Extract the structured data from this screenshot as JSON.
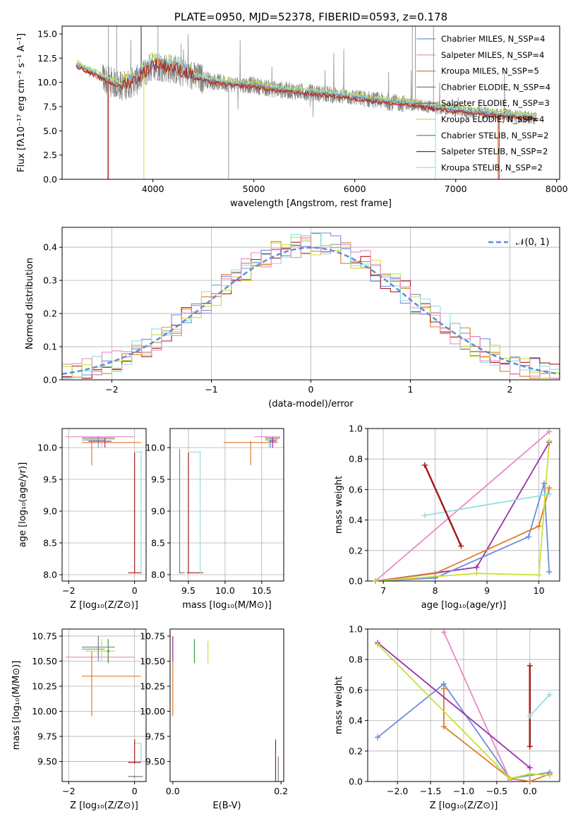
{
  "colors": {
    "chabrier_miles": "#6a8fdc",
    "salpeter_miles": "#e78ac3",
    "kroupa_miles": "#e07b2a",
    "chabrier_elodie": "#7f7f7f",
    "salpeter_elodie": "#9b30b0",
    "kroupa_elodie": "#c8e036",
    "chabrier_stelib": "#3f8f3f",
    "salpeter_stelib": "#a51c1c",
    "kroupa_stelib": "#8fe0e0",
    "spectrum": "#808080",
    "normal": "#5b8fd6"
  },
  "chart_data": [
    {
      "id": "spectrum",
      "type": "line",
      "title": "PLATE=0950, MJD=52378, FIBERID=0593, z=0.178",
      "xlabel": "wavelength [Angstrom, rest frame]",
      "ylabel": "Flux [fλ10⁻¹⁷ erg cm⁻² s⁻¹ A⁻¹]",
      "xlim": [
        3100,
        8030
      ],
      "ylim": [
        0,
        15.8
      ],
      "xticks": [
        4000,
        5000,
        6000,
        7000,
        8000
      ],
      "yticks": [
        0.0,
        2.5,
        5.0,
        7.5,
        10.0,
        12.5,
        15.0
      ],
      "xtick_labels": [
        "4000",
        "5000",
        "6000",
        "7000",
        "8000"
      ],
      "ytick_labels": [
        "0.0",
        "2.5",
        "5.0",
        "7.5",
        "10.0",
        "12.5",
        "15.0"
      ],
      "model_continuum": {
        "x": [
          3240,
          3400,
          3550,
          3700,
          3850,
          4000,
          4200,
          4400,
          4600,
          4800,
          5000,
          5200,
          5500,
          5800,
          6100,
          6400,
          6600,
          6800,
          7000,
          7200,
          7400,
          7600,
          7800
        ],
        "y": [
          11.8,
          11.0,
          10.2,
          9.6,
          10.3,
          11.8,
          11.4,
          10.6,
          10.1,
          9.8,
          9.7,
          9.3,
          9.0,
          8.7,
          8.3,
          7.9,
          7.7,
          7.4,
          7.1,
          6.9,
          6.7,
          6.5,
          6.3
        ]
      },
      "legend": [
        "Chabrier MILES, N_SSP=4",
        "Salpeter MILES, N_SSP=4",
        "Kroupa MILES, N_SSP=5",
        "Chabrier ELODIE, N_SSP=4",
        "Salpeter ELODIE, N_SSP=3",
        "Kroupa ELODIE, N_SSP=4",
        "Chabrier STELIB, N_SSP=2",
        "Salpeter STELIB, N_SSP=2",
        "Kroupa STELIB, N_SSP=2"
      ],
      "legend_placement": "upper-right",
      "grid": false
    },
    {
      "id": "hist",
      "type": "line",
      "xlabel": "(data-model)/error",
      "ylabel": "Normed distribution",
      "xlim": [
        -2.5,
        2.5
      ],
      "ylim": [
        0,
        0.46
      ],
      "xticks": [
        -2,
        -1,
        0,
        1,
        2
      ],
      "yticks": [
        0.0,
        0.1,
        0.2,
        0.3,
        0.4
      ],
      "xtick_labels": [
        "−2",
        "−1",
        "0",
        "1",
        "2"
      ],
      "ytick_labels": [
        "0.0",
        "0.1",
        "0.2",
        "0.3",
        "0.4"
      ],
      "legend": [
        "𝒩(0, 1)"
      ],
      "legend_placement": "upper-right",
      "grid": true,
      "bin_edges_start": -2.5,
      "bin_width": 0.1,
      "normal_curve": {
        "mean": 0,
        "sigma": 1
      }
    },
    {
      "id": "age_z",
      "type": "scatter",
      "xlabel": "Z [log₁₀(Z/Z⊙)]",
      "ylabel": "age  [log₁₀(age/yr)]",
      "xlim": [
        -2.2,
        0.35
      ],
      "ylim": [
        7.9,
        10.3
      ],
      "xticks": [
        -2,
        0
      ],
      "yticks": [
        8.0,
        8.5,
        9.0,
        9.5,
        10.0
      ],
      "xtick_labels": [
        "−2",
        "0"
      ],
      "ytick_labels": [
        "8.0",
        "8.5",
        "9.0",
        "9.5",
        "10.0"
      ],
      "grid": true
    },
    {
      "id": "age_mass",
      "type": "scatter",
      "xlabel": "mass [log₁₀(M/M⊙)]",
      "xlim": [
        9.25,
        10.8
      ],
      "ylim": [
        7.9,
        10.3
      ],
      "xticks": [
        9.5,
        10.0,
        10.5
      ],
      "yticks": [
        8.0,
        8.5,
        9.0,
        9.5,
        10.0
      ],
      "xtick_labels": [
        "9.5",
        "10.0",
        "10.5"
      ],
      "ytick_labels": [
        "8.0",
        "8.5",
        "9.0",
        "9.5",
        "10.0"
      ],
      "grid": true
    },
    {
      "id": "mw_age",
      "type": "line",
      "xlabel": "age  [log₁₀(age/yr)]",
      "ylabel": "mass weight",
      "xlim": [
        6.7,
        10.4
      ],
      "ylim": [
        0,
        1.0
      ],
      "xticks": [
        7,
        8,
        9,
        10
      ],
      "yticks": [
        0.0,
        0.2,
        0.4,
        0.6,
        0.8,
        1.0
      ],
      "xtick_labels": [
        "7",
        "8",
        "9",
        "10"
      ],
      "ytick_labels": [
        "0.0",
        "0.2",
        "0.4",
        "0.6",
        "0.8",
        "1.0"
      ],
      "grid": true,
      "series": [
        {
          "color": "salpeter_miles",
          "x": [
            6.85,
            10.2
          ],
          "y": [
            0.0,
            0.98
          ]
        },
        {
          "color": "salpeter_elodie",
          "x": [
            6.85,
            8.8,
            10.2
          ],
          "y": [
            0.0,
            0.09,
            0.91
          ]
        },
        {
          "color": "chabrier_miles",
          "x": [
            6.85,
            8.0,
            9.8,
            10.1,
            10.2
          ],
          "y": [
            0.0,
            0.02,
            0.29,
            0.64,
            0.06
          ]
        },
        {
          "color": "kroupa_miles",
          "x": [
            6.85,
            8.0,
            10.0,
            10.2
          ],
          "y": [
            0.0,
            0.05,
            0.36,
            0.61
          ]
        },
        {
          "color": "kroupa_elodie",
          "x": [
            6.85,
            8.8,
            10.0,
            10.2
          ],
          "y": [
            0.0,
            0.05,
            0.04,
            0.92
          ]
        },
        {
          "color": "kroupa_stelib",
          "x": [
            7.8,
            10.2
          ],
          "y": [
            0.43,
            0.57
          ]
        },
        {
          "color": "salpeter_stelib",
          "x": [
            7.8,
            8.5
          ],
          "y": [
            0.76,
            0.23
          ]
        }
      ]
    },
    {
      "id": "mass_z",
      "type": "scatter",
      "xlabel": "Z [log₁₀(Z/Z⊙)]",
      "ylabel": "mass [log₁₀(M/M⊙)]",
      "xlim": [
        -2.2,
        0.35
      ],
      "ylim": [
        9.3,
        10.82
      ],
      "xticks": [
        -2,
        0
      ],
      "yticks": [
        9.5,
        9.75,
        10.0,
        10.25,
        10.5,
        10.75
      ],
      "xtick_labels": [
        "−2",
        "0"
      ],
      "ytick_labels": [
        "9.50",
        "9.75",
        "10.00",
        "10.25",
        "10.50",
        "10.75"
      ],
      "grid": true
    },
    {
      "id": "mass_ebv",
      "type": "scatter",
      "xlabel": "E(B-V)",
      "xlim": [
        -0.005,
        0.205
      ],
      "ylim": [
        9.3,
        10.82
      ],
      "xticks": [
        0.0,
        0.2
      ],
      "yticks": [
        9.5,
        9.75,
        10.0,
        10.25,
        10.5,
        10.75
      ],
      "xtick_labels": [
        "0.0",
        "0.2"
      ],
      "ytick_labels": [
        "9.50",
        "9.75",
        "10.00",
        "10.25",
        "10.50",
        "10.75"
      ],
      "grid": false
    },
    {
      "id": "mw_z",
      "type": "line",
      "xlabel": "Z [log₁₀(Z/Z⊙)]",
      "ylabel": "mass weight",
      "xlim": [
        -2.45,
        0.45
      ],
      "ylim": [
        0,
        1.0
      ],
      "xticks": [
        -2.0,
        -1.5,
        -1.0,
        -0.5,
        0.0
      ],
      "yticks": [
        0.0,
        0.2,
        0.4,
        0.6,
        0.8,
        1.0
      ],
      "xtick_labels": [
        "−2.0",
        "−1.5",
        "−1.0",
        "−0.5",
        "0.0"
      ],
      "ytick_labels": [
        "0.0",
        "0.2",
        "0.4",
        "0.6",
        "0.8",
        "1.0"
      ],
      "grid": true,
      "series": [
        {
          "color": "chabrier_miles",
          "x": [
            -2.3,
            -1.3,
            -0.3,
            0.0,
            0.3
          ],
          "y": [
            0.29,
            0.64,
            0.02,
            0.04,
            0.06
          ]
        },
        {
          "color": "salpeter_miles",
          "x": [
            -1.3,
            -0.3
          ],
          "y": [
            0.98,
            0.01
          ]
        },
        {
          "color": "kroupa_miles",
          "x": [
            -1.3,
            -1.3,
            -0.3,
            0.0,
            0.3
          ],
          "y": [
            0.61,
            0.36,
            0.02,
            0.0,
            0.05
          ]
        },
        {
          "color": "salpeter_elodie",
          "x": [
            -2.3,
            0.0
          ],
          "y": [
            0.91,
            0.09
          ]
        },
        {
          "color": "kroupa_elodie",
          "x": [
            -2.3,
            -0.3,
            0.0,
            0.3
          ],
          "y": [
            0.9,
            0.02,
            0.05,
            0.04
          ]
        },
        {
          "color": "salpeter_stelib",
          "x": [
            0.0,
            0.0
          ],
          "y": [
            0.76,
            0.23
          ]
        },
        {
          "color": "kroupa_stelib",
          "x": [
            0.0,
            0.3
          ],
          "y": [
            0.43,
            0.57
          ]
        }
      ]
    }
  ]
}
